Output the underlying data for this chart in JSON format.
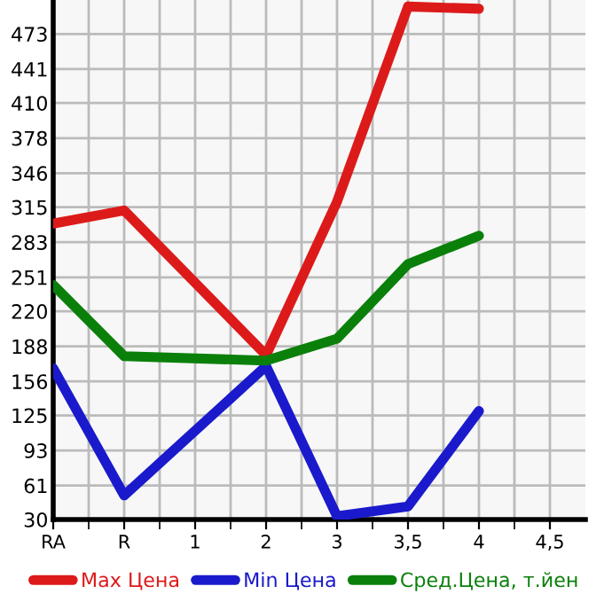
{
  "chart_data": {
    "type": "line",
    "categories": [
      "RA",
      "R",
      "1",
      "2",
      "3",
      "3,5",
      "4",
      "4,5"
    ],
    "series": [
      {
        "name": "Max Цена",
        "color": "#dd1a1a",
        "values": [
          300,
          312,
          null,
          180,
          320,
          498,
          496,
          null
        ]
      },
      {
        "name": "Min Цена",
        "color": "#1a1acc",
        "values": [
          168,
          52,
          null,
          170,
          33,
          42,
          129,
          null
        ]
      },
      {
        "name": "Сред.Цена, т.йен",
        "color": "#0a800a",
        "values": [
          244,
          179,
          null,
          175,
          195,
          263,
          289,
          null
        ]
      }
    ],
    "ylim": [
      30,
      504
    ],
    "yticks": [
      30,
      61,
      93,
      125,
      156,
      188,
      220,
      251,
      283,
      315,
      346,
      378,
      410,
      441,
      473
    ],
    "grid": true,
    "legend": "bottom",
    "marker": "none",
    "line_style": "solid"
  }
}
